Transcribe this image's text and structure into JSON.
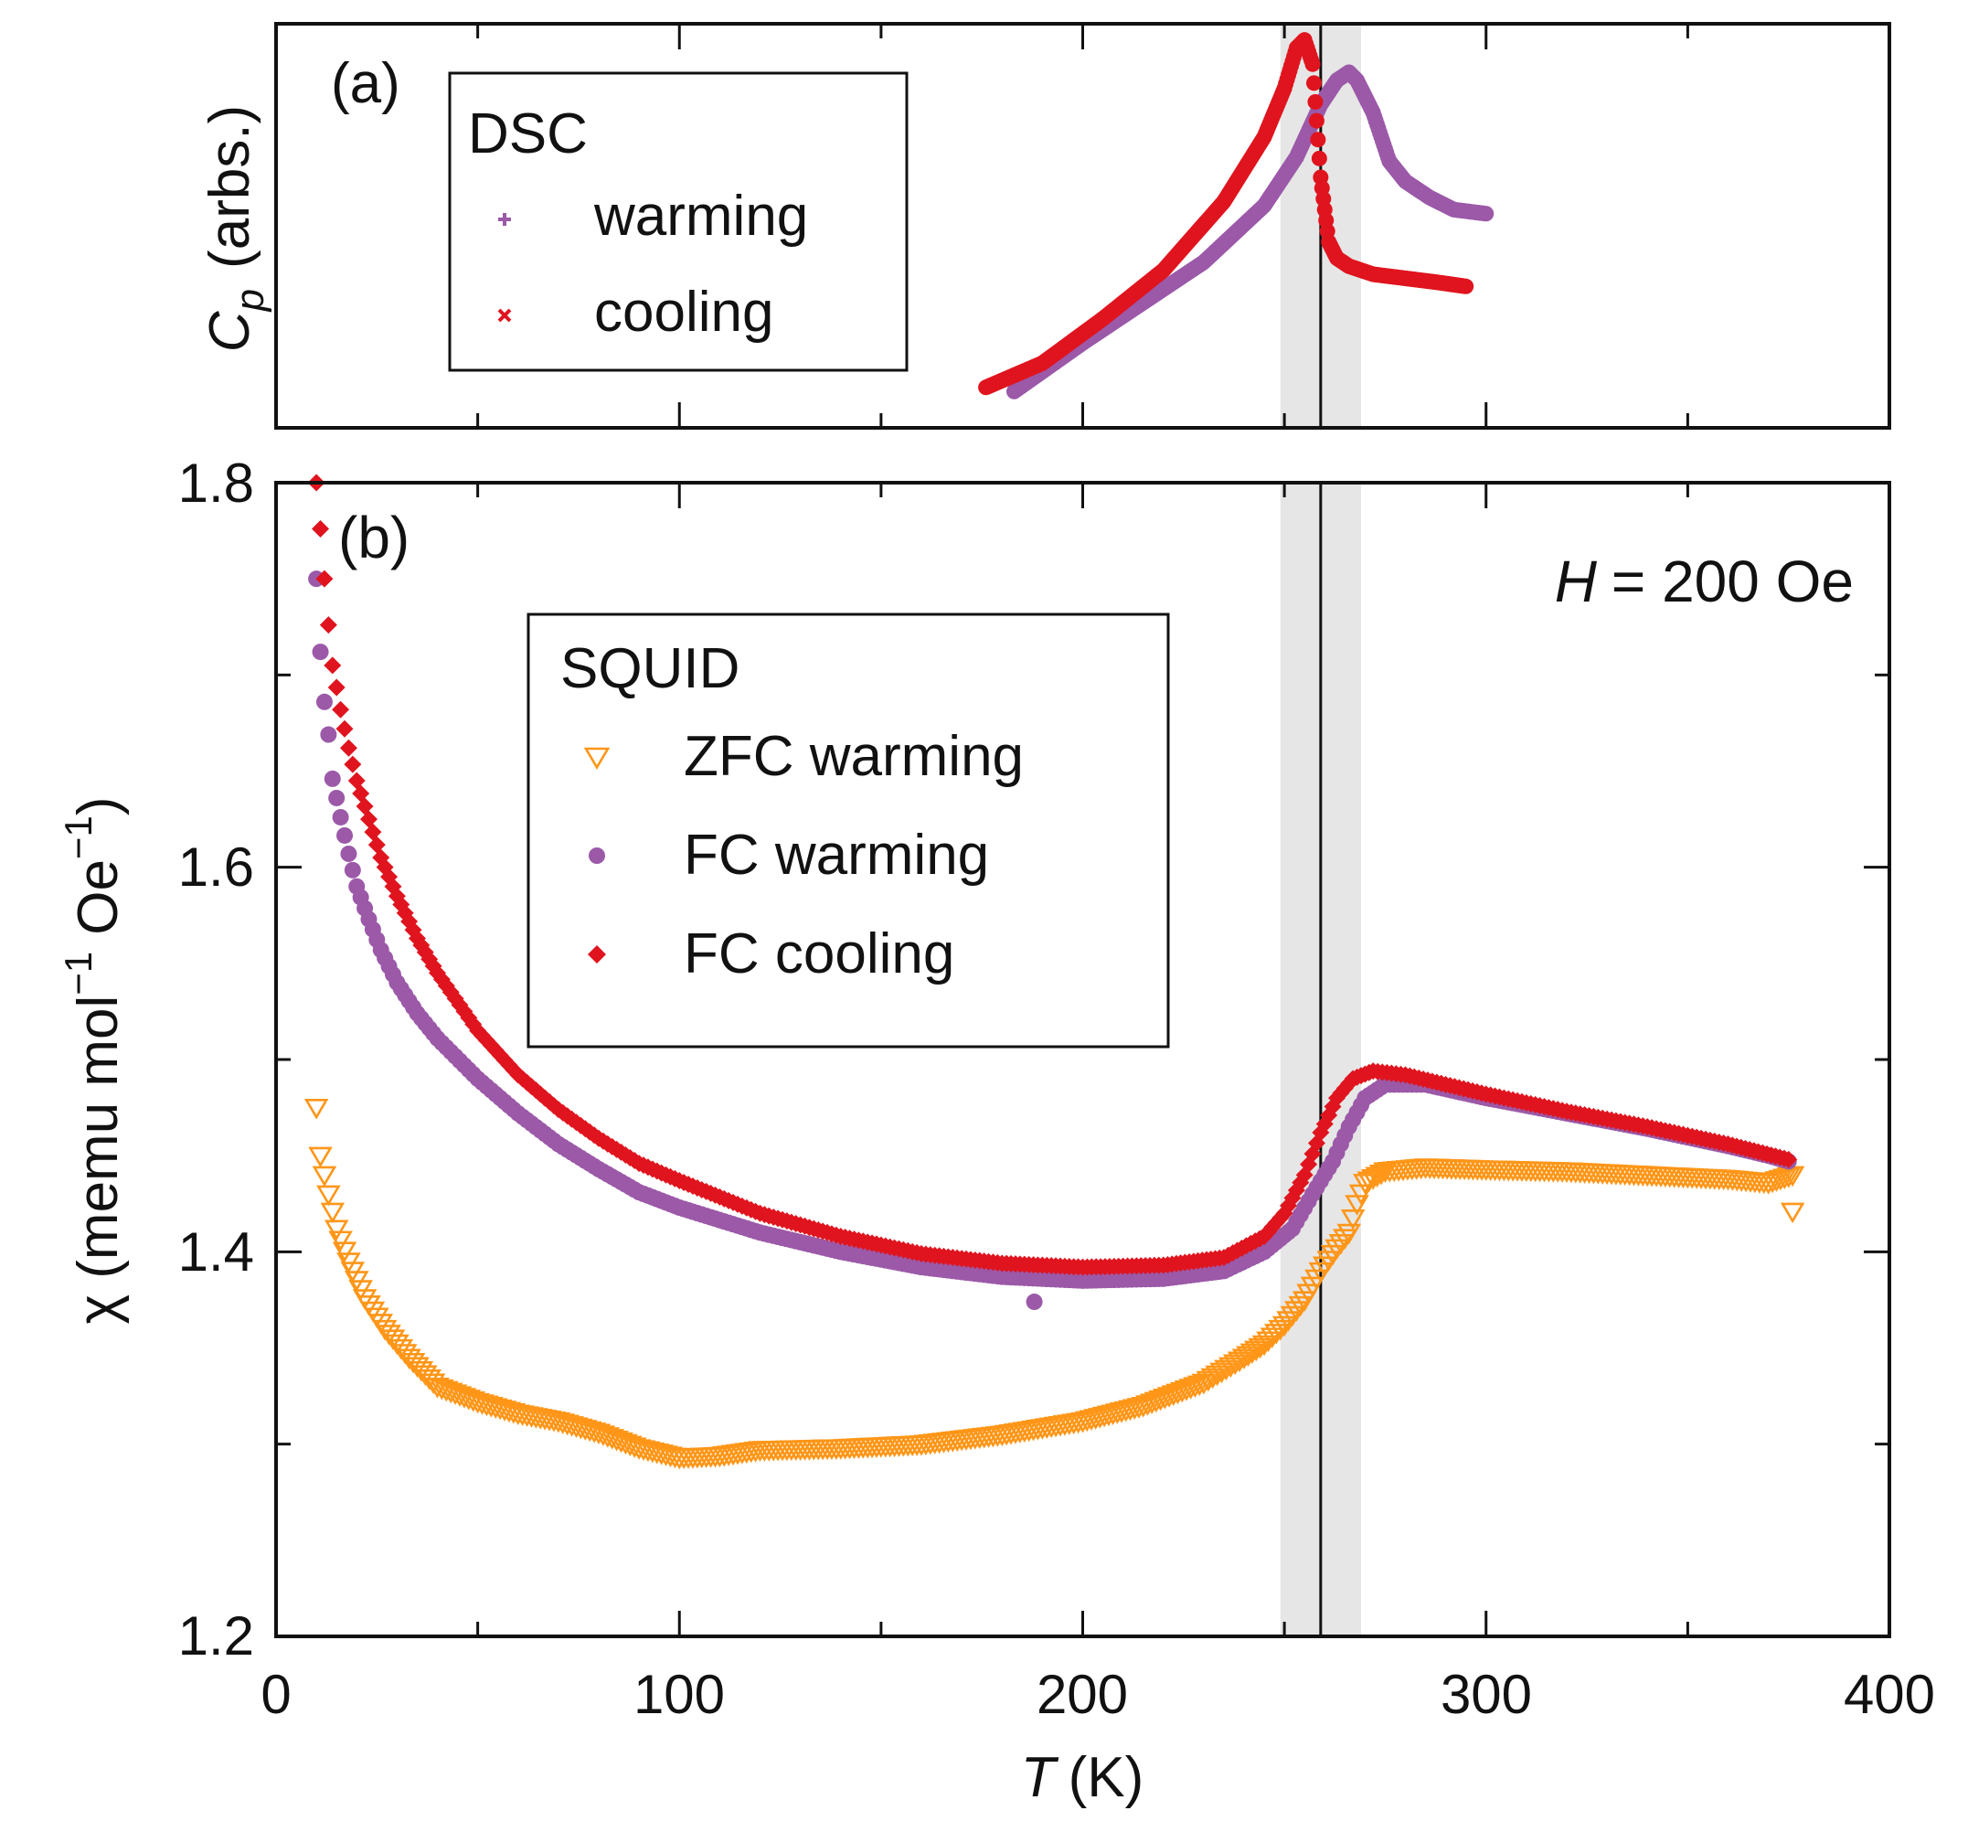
{
  "colors": {
    "warming": "#9B59A8",
    "cooling": "#E0141E",
    "zfc": "#FF9618",
    "band": "#E6E6E6",
    "axis": "#111111"
  },
  "chart_data": [
    {
      "type": "scatter",
      "panel_label": "(a)",
      "ylabel": "C_p (arbs.)",
      "ylabel_main": "C",
      "ylabel_sub": "p",
      "ylabel_unit": "(arbs.)",
      "xlim": [
        0,
        400
      ],
      "ylim": [
        0,
        1
      ],
      "yticks_labeled": false,
      "legend": {
        "title": "DSC",
        "position": "top-left",
        "entries": [
          {
            "label": "warming",
            "marker": "+",
            "color_key": "warming"
          },
          {
            "label": "cooling",
            "marker": "x",
            "color_key": "cooling"
          }
        ]
      },
      "shaded_band": [
        249,
        269
      ],
      "vline": 259,
      "series": [
        {
          "name": "warming",
          "color_key": "warming",
          "x": [
            183,
            200,
            215,
            230,
            245,
            253,
            259,
            263,
            266,
            268,
            272,
            276,
            280,
            286,
            292,
            300
          ],
          "y": [
            0.09,
            0.21,
            0.31,
            0.41,
            0.55,
            0.67,
            0.8,
            0.86,
            0.88,
            0.86,
            0.78,
            0.66,
            0.61,
            0.57,
            0.54,
            0.53
          ]
        },
        {
          "name": "cooling",
          "color_key": "cooling",
          "x": [
            176,
            190,
            205,
            220,
            235,
            245,
            250,
            253,
            255,
            257,
            259,
            261,
            263,
            266,
            272,
            280,
            288,
            295
          ],
          "y": [
            0.1,
            0.16,
            0.27,
            0.39,
            0.56,
            0.72,
            0.84,
            0.94,
            0.96,
            0.9,
            0.62,
            0.46,
            0.42,
            0.4,
            0.38,
            0.37,
            0.36,
            0.35
          ]
        }
      ]
    },
    {
      "type": "scatter",
      "panel_label": "(b)",
      "xlabel": "T (K)",
      "xlabel_var": "T",
      "xlabel_unit": "(K)",
      "ylabel": "χ (memu mol⁻¹ Oe⁻¹)",
      "ylabel_pre": "χ (memu mol",
      "ylabel_mid": "Oe",
      "ylabel_post": ")",
      "ylabel_sup": "−1",
      "xlim": [
        0,
        400
      ],
      "ylim": [
        1.2,
        1.8
      ],
      "xticks": [
        "0",
        "100",
        "200",
        "300",
        "400"
      ],
      "yticks": [
        "1.2",
        "1.4",
        "1.6",
        "1.8"
      ],
      "annotation_var": "H",
      "annotation_rest": "= 200 Oe",
      "legend": {
        "title": "SQUID",
        "position": "upper-center",
        "entries": [
          {
            "label": "ZFC warming",
            "marker": "triangle-down",
            "color_key": "zfc"
          },
          {
            "label": "FC warming",
            "marker": "circle",
            "color_key": "warming"
          },
          {
            "label": "FC cooling",
            "marker": "diamond",
            "color_key": "cooling"
          }
        ]
      },
      "shaded_band": [
        249,
        269
      ],
      "vline": 259,
      "series": [
        {
          "name": "ZFC warming",
          "color_key": "zfc",
          "marker": "triangle-down",
          "x": [
            10,
            11,
            13,
            15,
            18,
            22,
            27,
            33,
            40,
            50,
            60,
            70,
            80,
            90,
            100,
            110,
            120,
            140,
            160,
            180,
            200,
            215,
            230,
            240,
            245,
            250,
            255,
            259,
            263,
            266,
            268,
            270,
            275,
            285,
            300,
            320,
            340,
            360,
            370,
            376
          ],
          "y": [
            1.475,
            1.45,
            1.43,
            1.412,
            1.395,
            1.376,
            1.36,
            1.345,
            1.33,
            1.322,
            1.316,
            1.312,
            1.306,
            1.298,
            1.293,
            1.294,
            1.297,
            1.298,
            1.3,
            1.305,
            1.312,
            1.32,
            1.332,
            1.345,
            1.352,
            1.362,
            1.375,
            1.39,
            1.402,
            1.41,
            1.425,
            1.436,
            1.442,
            1.444,
            1.443,
            1.442,
            1.44,
            1.438,
            1.436,
            1.44
          ]
        },
        {
          "name": "FC warming",
          "color_key": "warming",
          "marker": "circle",
          "x": [
            10,
            11,
            12,
            13,
            14,
            16,
            18,
            20,
            23,
            26,
            30,
            35,
            40,
            50,
            60,
            70,
            80,
            90,
            100,
            120,
            140,
            160,
            180,
            200,
            220,
            235,
            245,
            252,
            257,
            262,
            266,
            270,
            275,
            285,
            300,
            320,
            340,
            360,
            370,
            375
          ],
          "y": [
            1.75,
            1.712,
            1.686,
            1.669,
            1.646,
            1.626,
            1.607,
            1.59,
            1.573,
            1.557,
            1.54,
            1.524,
            1.511,
            1.49,
            1.472,
            1.456,
            1.443,
            1.431,
            1.423,
            1.41,
            1.4,
            1.392,
            1.387,
            1.385,
            1.386,
            1.39,
            1.4,
            1.412,
            1.43,
            1.447,
            1.465,
            1.48,
            1.487,
            1.487,
            1.48,
            1.472,
            1.464,
            1.455,
            1.45,
            1.447
          ]
        },
        {
          "name": "FC cooling",
          "color_key": "cooling",
          "marker": "diamond",
          "x": [
            10,
            11,
            12,
            13,
            14,
            16,
            18,
            20,
            23,
            26,
            30,
            35,
            40,
            50,
            60,
            70,
            80,
            90,
            100,
            120,
            140,
            160,
            180,
            200,
            220,
            235,
            245,
            250,
            255,
            259,
            263,
            267,
            272,
            280,
            290,
            300,
            320,
            340,
            360,
            375
          ],
          "y": [
            1.8,
            1.776,
            1.75,
            1.726,
            1.705,
            1.682,
            1.662,
            1.645,
            1.625,
            1.605,
            1.585,
            1.563,
            1.545,
            1.515,
            1.492,
            1.474,
            1.459,
            1.446,
            1.437,
            1.42,
            1.408,
            1.399,
            1.394,
            1.392,
            1.393,
            1.397,
            1.408,
            1.42,
            1.44,
            1.462,
            1.48,
            1.49,
            1.494,
            1.492,
            1.487,
            1.482,
            1.473,
            1.465,
            1.456,
            1.448
          ]
        }
      ],
      "outliers": [
        {
          "series": "FC warming",
          "x": 188,
          "y": 1.374
        },
        {
          "series": "ZFC warming",
          "x": 376,
          "y": 1.421
        }
      ]
    }
  ]
}
